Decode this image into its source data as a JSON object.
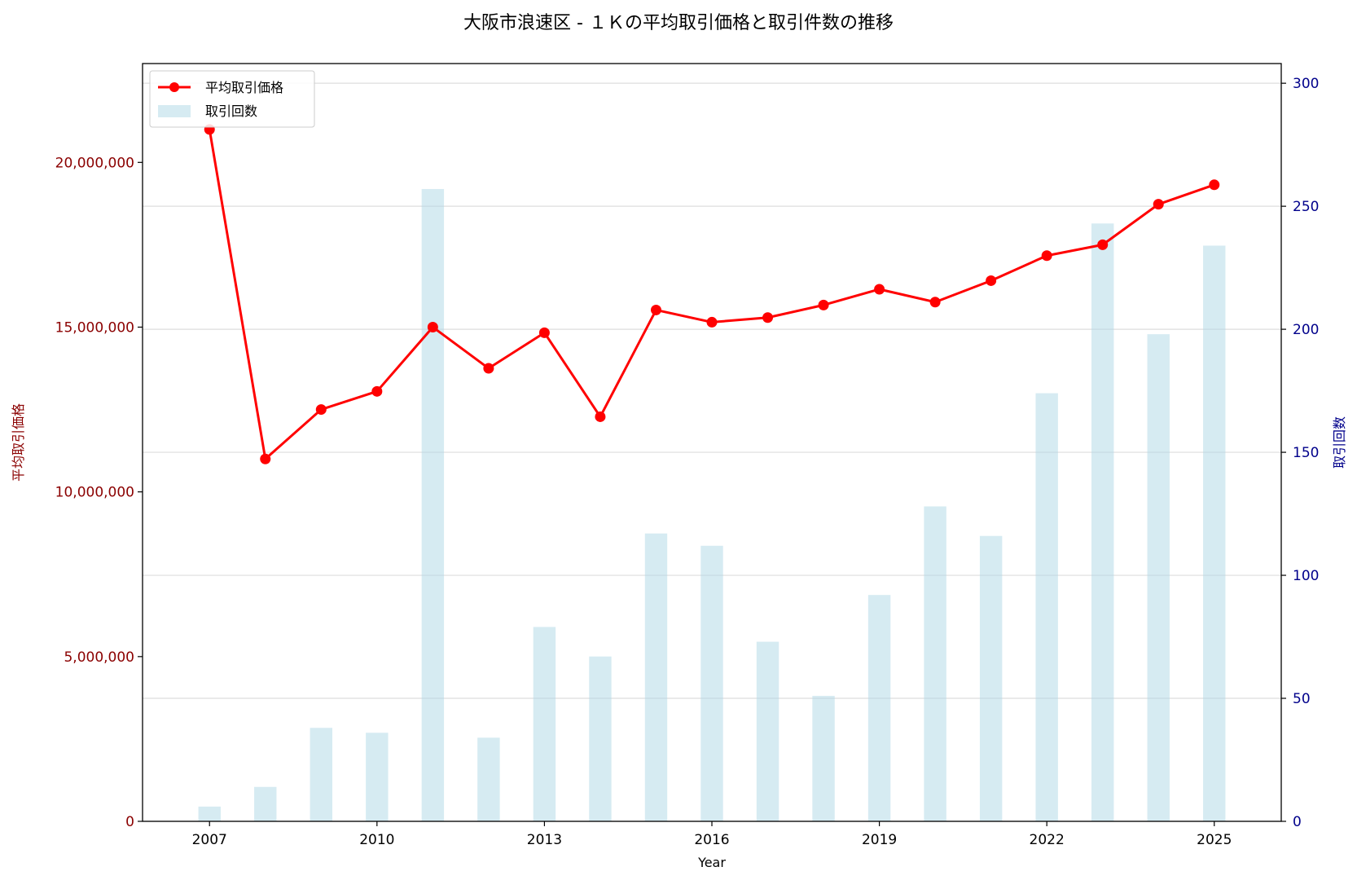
{
  "chart_data": {
    "type": "line+bar",
    "title": "大阪市浪速区 - １Ｋの平均取引価格と取引件数の推移",
    "xlabel": "Year",
    "ylabel_left": "平均取引価格",
    "ylabel_right": "取引回数",
    "x": [
      2007,
      2008,
      2009,
      2010,
      2011,
      2012,
      2013,
      2014,
      2015,
      2016,
      2017,
      2018,
      2019,
      2020,
      2021,
      2022,
      2023,
      2024,
      2025
    ],
    "x_ticks": [
      "2007",
      "2010",
      "2013",
      "2016",
      "2019",
      "2022",
      "2025"
    ],
    "xlim": [
      2005.8,
      2026.2
    ],
    "series": [
      {
        "name": "平均取引価格",
        "type": "line",
        "axis": "left",
        "color": "#ff0000",
        "values": [
          21000000,
          11000000,
          12500000,
          13050000,
          15000000,
          13750000,
          14830000,
          12280000,
          15520000,
          15150000,
          15290000,
          15670000,
          16150000,
          15760000,
          16410000,
          17170000,
          17500000,
          18730000,
          19320000
        ]
      },
      {
        "name": "取引回数",
        "type": "bar",
        "axis": "right",
        "color": "#add8e6",
        "values": [
          6,
          14,
          38,
          36,
          257,
          34,
          79,
          67,
          117,
          112,
          73,
          51,
          92,
          128,
          116,
          174,
          243,
          198,
          234
        ]
      }
    ],
    "ylim_left": [
      0,
      23000000
    ],
    "yticks_left": [
      "0",
      "5,000,000",
      "10,000,000",
      "15,000,000",
      "20,000,000"
    ],
    "ylim_right": [
      0,
      308
    ],
    "yticks_right": [
      "0",
      "50",
      "100",
      "150",
      "200",
      "250",
      "300"
    ],
    "grid": true,
    "legend": "top-left",
    "left_axis_color": "#8b0000",
    "right_axis_color": "#00008b"
  }
}
